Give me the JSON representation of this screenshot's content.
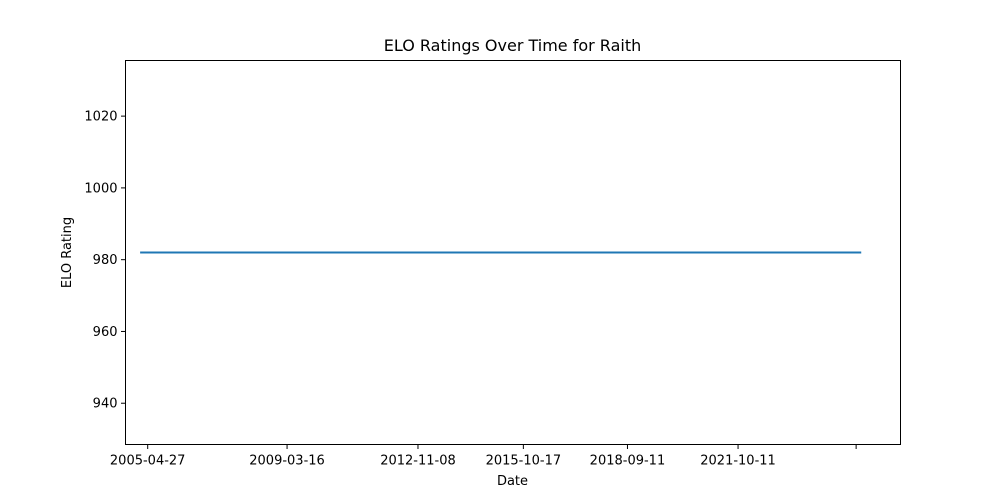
{
  "chart_data": {
    "type": "line",
    "title": "ELO Ratings Over Time for Raith",
    "xlabel": "Date",
    "ylabel": "ELO Rating",
    "x_ticks": [
      "2005-04-27",
      "2009-03-16",
      "2012-11-08",
      "2015-10-17",
      "2018-09-11",
      "2021-10-11",
      ""
    ],
    "y_ticks": [
      "940",
      "960",
      "980",
      "1000",
      "1020"
    ],
    "xlim": [
      "2004-09-13",
      "2026-04-22"
    ],
    "ylim": [
      928.5,
      1035.5
    ],
    "grid": false,
    "series": [
      {
        "color": "#1f77b4",
        "x": [
          "2005-02-19",
          "2025-03-08"
        ],
        "values": [
          982,
          982
        ]
      }
    ]
  }
}
